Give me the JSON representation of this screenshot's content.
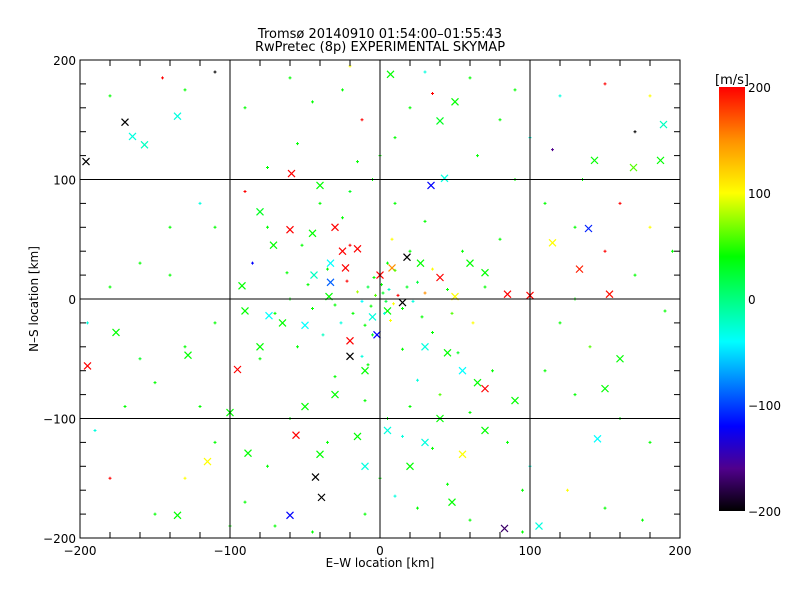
{
  "chart_data": {
    "type": "scatter",
    "title": "Tromsø 20140910 01:54:00–01:55:43",
    "subtitle": "RwPretec (8p) EXPERIMENTAL SKYMAP",
    "xlabel": "E–W location [km]",
    "ylabel": "N–S location [km]",
    "xlim": [
      -200,
      200
    ],
    "ylim": [
      -200,
      200
    ],
    "xticks": [
      "−200",
      "−100",
      "0",
      "100",
      "200"
    ],
    "yticks": [
      "−200",
      "−100",
      "0",
      "100",
      "200"
    ],
    "xtick_values": [
      -200,
      -100,
      0,
      100,
      200
    ],
    "ytick_values": [
      -200,
      -100,
      0,
      100,
      200
    ],
    "grid": true,
    "colorbar": {
      "label": "[m/s]",
      "range": [
        -200,
        200
      ],
      "tick_values": [
        200,
        100,
        0,
        -100,
        -200
      ],
      "tick_labels": [
        "200",
        "100",
        "0",
        "−100",
        "−200"
      ],
      "stops": [
        {
          "v": -200,
          "color": "#000000"
        },
        {
          "v": -160,
          "color": "#50008c"
        },
        {
          "v": -120,
          "color": "#0000ff"
        },
        {
          "v": -40,
          "color": "#00ffff"
        },
        {
          "v": 0,
          "color": "#00ff80"
        },
        {
          "v": 40,
          "color": "#00ff00"
        },
        {
          "v": 100,
          "color": "#ffff00"
        },
        {
          "v": 150,
          "color": "#ff9000"
        },
        {
          "v": 200,
          "color": "#ff0000"
        }
      ]
    },
    "point_fields": [
      "x_km",
      "y_km",
      "velocity_ms",
      "large_cross"
    ],
    "points": [
      [
        -170,
        148,
        -200,
        1
      ],
      [
        -196,
        115,
        -200,
        1
      ],
      [
        -135,
        153,
        -30,
        1
      ],
      [
        -165,
        136,
        -30,
        1
      ],
      [
        -157,
        129,
        -20,
        1
      ],
      [
        -59,
        105,
        200,
        1
      ],
      [
        -80,
        73,
        30,
        1
      ],
      [
        -71,
        45,
        40,
        1
      ],
      [
        -92,
        11,
        40,
        1
      ],
      [
        -40,
        95,
        40,
        1
      ],
      [
        7,
        188,
        40,
        1
      ],
      [
        40,
        149,
        30,
        1
      ],
      [
        50,
        165,
        40,
        1
      ],
      [
        34,
        95,
        -120,
        1
      ],
      [
        43,
        101,
        -30,
        1
      ],
      [
        143,
        116,
        40,
        1
      ],
      [
        133,
        25,
        190,
        1
      ],
      [
        153,
        4,
        195,
        1
      ],
      [
        187,
        116,
        40,
        1
      ],
      [
        169,
        110,
        60,
        1
      ],
      [
        139,
        59,
        -110,
        1
      ],
      [
        115,
        47,
        100,
        1
      ],
      [
        189,
        146,
        -20,
        1
      ],
      [
        -195,
        -56,
        200,
        1
      ],
      [
        -95,
        -59,
        200,
        1
      ],
      [
        -176,
        -28,
        40,
        1
      ],
      [
        -135,
        -181,
        40,
        1
      ],
      [
        -115,
        -136,
        100,
        1
      ],
      [
        -60,
        -181,
        -120,
        1
      ],
      [
        -43,
        -149,
        -200,
        1
      ],
      [
        -39,
        -166,
        -200,
        1
      ],
      [
        -56,
        -114,
        200,
        1
      ],
      [
        83,
        -192,
        -170,
        1
      ],
      [
        106,
        -190,
        -30,
        1
      ],
      [
        145,
        -117,
        -40,
        1
      ],
      [
        -20,
        -48,
        -200,
        1
      ],
      [
        -10,
        -60,
        40,
        1
      ],
      [
        -65,
        -20,
        40,
        1
      ],
      [
        -50,
        -22,
        -40,
        1
      ],
      [
        -74,
        -14,
        -40,
        1
      ],
      [
        -34,
        2,
        40,
        1
      ],
      [
        -25,
        40,
        200,
        1
      ],
      [
        -23,
        26,
        200,
        1
      ],
      [
        -15,
        42,
        200,
        1
      ],
      [
        -33,
        30,
        -40,
        1
      ],
      [
        -30,
        60,
        200,
        1
      ],
      [
        -45,
        55,
        40,
        1
      ],
      [
        -60,
        58,
        200,
        1
      ],
      [
        -44,
        20,
        -20,
        1
      ],
      [
        -33,
        14,
        -90,
        1
      ],
      [
        0,
        20,
        200,
        1
      ],
      [
        8,
        26,
        150,
        1
      ],
      [
        18,
        35,
        -200,
        1
      ],
      [
        27,
        30,
        40,
        1
      ],
      [
        40,
        18,
        200,
        1
      ],
      [
        60,
        30,
        40,
        1
      ],
      [
        70,
        22,
        40,
        1
      ],
      [
        85,
        4,
        200,
        1
      ],
      [
        100,
        3,
        200,
        1
      ],
      [
        50,
        2,
        100,
        1
      ],
      [
        15,
        -3,
        -200,
        1
      ],
      [
        5,
        -10,
        40,
        1
      ],
      [
        -5,
        -15,
        -30,
        1
      ],
      [
        -2,
        -30,
        -120,
        1
      ],
      [
        -20,
        -35,
        200,
        1
      ],
      [
        30,
        -40,
        -30,
        1
      ],
      [
        45,
        -45,
        40,
        1
      ],
      [
        55,
        -60,
        -40,
        1
      ],
      [
        65,
        -70,
        40,
        1
      ],
      [
        70,
        -75,
        200,
        1
      ],
      [
        90,
        -85,
        40,
        1
      ],
      [
        40,
        -100,
        40,
        1
      ],
      [
        30,
        -120,
        -30,
        1
      ],
      [
        55,
        -130,
        100,
        1
      ],
      [
        20,
        -140,
        40,
        1
      ],
      [
        -30,
        -80,
        40,
        1
      ],
      [
        -50,
        -90,
        40,
        1
      ],
      [
        -15,
        -115,
        40,
        1
      ],
      [
        -40,
        -130,
        40,
        1
      ],
      [
        -10,
        -140,
        -30,
        1
      ],
      [
        -88,
        -129,
        40,
        1
      ],
      [
        -100,
        -95,
        40,
        1
      ],
      [
        -128,
        -47,
        40,
        1
      ],
      [
        -90,
        -10,
        40,
        1
      ],
      [
        -80,
        -40,
        40,
        1
      ],
      [
        5,
        -110,
        -30,
        1
      ],
      [
        48,
        -170,
        40,
        1
      ],
      [
        70,
        -110,
        40,
        1
      ],
      [
        160,
        -50,
        40,
        1
      ],
      [
        150,
        -75,
        40,
        1
      ],
      [
        2,
        5,
        30,
        0
      ],
      [
        4,
        -2,
        20,
        0
      ],
      [
        -3,
        3,
        60,
        0
      ],
      [
        6,
        8,
        -20,
        0
      ],
      [
        9,
        -4,
        100,
        0
      ],
      [
        -6,
        -6,
        40,
        0
      ],
      [
        12,
        3,
        200,
        0
      ],
      [
        -8,
        10,
        20,
        0
      ],
      [
        1,
        12,
        40,
        0
      ],
      [
        3,
        -12,
        -30,
        0
      ],
      [
        -12,
        -2,
        -40,
        0
      ],
      [
        15,
        -8,
        40,
        0
      ],
      [
        -15,
        6,
        80,
        0
      ],
      [
        18,
        10,
        30,
        0
      ],
      [
        -4,
        18,
        40,
        0
      ],
      [
        7,
        -18,
        100,
        0
      ],
      [
        22,
        -2,
        -30,
        0
      ],
      [
        -18,
        -12,
        40,
        0
      ],
      [
        25,
        14,
        20,
        0
      ],
      [
        -22,
        15,
        200,
        0
      ],
      [
        10,
        24,
        60,
        0
      ],
      [
        -10,
        -22,
        40,
        0
      ],
      [
        28,
        -15,
        40,
        0
      ],
      [
        -26,
        -20,
        -30,
        0
      ],
      [
        30,
        5,
        150,
        0
      ],
      [
        -30,
        -5,
        40,
        0
      ],
      [
        5,
        30,
        40,
        0
      ],
      [
        -5,
        -30,
        30,
        0
      ],
      [
        35,
        25,
        100,
        0
      ],
      [
        -35,
        25,
        40,
        0
      ],
      [
        35,
        -28,
        40,
        0
      ],
      [
        -38,
        -30,
        -20,
        0
      ],
      [
        20,
        40,
        40,
        0
      ],
      [
        -20,
        45,
        200,
        0
      ],
      [
        15,
        -42,
        40,
        0
      ],
      [
        -12,
        -48,
        -30,
        0
      ],
      [
        45,
        8,
        40,
        0
      ],
      [
        -45,
        -8,
        40,
        0
      ],
      [
        48,
        -12,
        60,
        0
      ],
      [
        -48,
        12,
        40,
        0
      ],
      [
        8,
        50,
        100,
        0
      ],
      [
        -8,
        -55,
        40,
        0
      ],
      [
        55,
        40,
        40,
        0
      ],
      [
        -55,
        -40,
        40,
        0
      ],
      [
        52,
        -45,
        30,
        0
      ],
      [
        -52,
        45,
        40,
        0
      ],
      [
        30,
        65,
        40,
        0
      ],
      [
        -30,
        -65,
        40,
        0
      ],
      [
        25,
        -68,
        -30,
        0
      ],
      [
        -25,
        68,
        40,
        0
      ],
      [
        70,
        10,
        40,
        0
      ],
      [
        -70,
        -12,
        40,
        0
      ],
      [
        62,
        -20,
        100,
        0
      ],
      [
        -62,
        22,
        40,
        0
      ],
      [
        80,
        50,
        40,
        0
      ],
      [
        -80,
        -50,
        40,
        0
      ],
      [
        75,
        -60,
        40,
        0
      ],
      [
        -75,
        60,
        40,
        0
      ],
      [
        10,
        80,
        40,
        0
      ],
      [
        -10,
        -85,
        40,
        0
      ],
      [
        20,
        -90,
        40,
        0
      ],
      [
        -20,
        90,
        30,
        0
      ],
      [
        40,
        -80,
        60,
        0
      ],
      [
        -40,
        80,
        40,
        0
      ],
      [
        60,
        -95,
        40,
        0
      ],
      [
        -60,
        -100,
        40,
        0
      ],
      [
        5,
        -100,
        40,
        0
      ],
      [
        -5,
        100,
        40,
        0
      ],
      [
        15,
        -115,
        -30,
        0
      ],
      [
        -15,
        115,
        40,
        0
      ],
      [
        35,
        -125,
        40,
        0
      ],
      [
        -35,
        -120,
        40,
        0
      ],
      [
        0,
        -150,
        40,
        0
      ],
      [
        10,
        -165,
        -30,
        0
      ],
      [
        25,
        -175,
        40,
        0
      ],
      [
        -10,
        -180,
        40,
        0
      ],
      [
        45,
        -155,
        40,
        0
      ],
      [
        60,
        -185,
        40,
        0
      ],
      [
        0,
        120,
        40,
        0
      ],
      [
        10,
        135,
        40,
        0
      ],
      [
        -12,
        150,
        200,
        0
      ],
      [
        20,
        160,
        40,
        0
      ],
      [
        -25,
        175,
        40,
        0
      ],
      [
        30,
        190,
        -30,
        0
      ],
      [
        90,
        100,
        40,
        0
      ],
      [
        110,
        80,
        40,
        0
      ],
      [
        130,
        60,
        40,
        0
      ],
      [
        150,
        40,
        200,
        0
      ],
      [
        170,
        20,
        40,
        0
      ],
      [
        190,
        -10,
        40,
        0
      ],
      [
        120,
        -20,
        40,
        0
      ],
      [
        140,
        -40,
        60,
        0
      ],
      [
        110,
        -60,
        40,
        0
      ],
      [
        130,
        -80,
        40,
        0
      ],
      [
        160,
        -100,
        40,
        0
      ],
      [
        180,
        -120,
        40,
        0
      ],
      [
        100,
        -140,
        -30,
        0
      ],
      [
        125,
        -160,
        100,
        0
      ],
      [
        150,
        -175,
        40,
        0
      ],
      [
        175,
        -185,
        40,
        0
      ],
      [
        95,
        -160,
        40,
        0
      ],
      [
        85,
        -120,
        40,
        0
      ],
      [
        -100,
        100,
        40,
        0
      ],
      [
        -120,
        80,
        -30,
        0
      ],
      [
        -140,
        60,
        40,
        0
      ],
      [
        -160,
        30,
        40,
        0
      ],
      [
        -180,
        10,
        40,
        0
      ],
      [
        -195,
        -20,
        -30,
        0
      ],
      [
        -110,
        -20,
        40,
        0
      ],
      [
        -130,
        -40,
        40,
        0
      ],
      [
        -150,
        -70,
        40,
        0
      ],
      [
        -170,
        -90,
        40,
        0
      ],
      [
        -190,
        -110,
        -30,
        0
      ],
      [
        -180,
        -150,
        200,
        0
      ],
      [
        -110,
        -120,
        40,
        0
      ],
      [
        -130,
        -150,
        100,
        0
      ],
      [
        -150,
        -180,
        40,
        0
      ],
      [
        -90,
        -170,
        40,
        0
      ],
      [
        -70,
        -190,
        40,
        0
      ],
      [
        -100,
        -190,
        40,
        0
      ],
      [
        -110,
        190,
        -200,
        0
      ],
      [
        -145,
        185,
        200,
        0
      ],
      [
        -180,
        170,
        40,
        0
      ],
      [
        -130,
        175,
        40,
        0
      ],
      [
        -90,
        160,
        40,
        0
      ],
      [
        -60,
        185,
        40,
        0
      ],
      [
        60,
        185,
        40,
        0
      ],
      [
        90,
        175,
        40,
        0
      ],
      [
        120,
        170,
        -30,
        0
      ],
      [
        150,
        180,
        200,
        0
      ],
      [
        180,
        170,
        100,
        0
      ],
      [
        170,
        140,
        -200,
        0
      ],
      [
        115,
        125,
        -160,
        0
      ],
      [
        135,
        100,
        40,
        0
      ],
      [
        160,
        80,
        200,
        0
      ],
      [
        180,
        60,
        100,
        0
      ],
      [
        195,
        40,
        40,
        0
      ],
      [
        130,
        0,
        40,
        0
      ],
      [
        -55,
        130,
        40,
        0
      ],
      [
        -75,
        110,
        40,
        0
      ],
      [
        -90,
        90,
        200,
        0
      ],
      [
        -110,
        60,
        40,
        0
      ],
      [
        -85,
        30,
        -120,
        0
      ],
      [
        -60,
        0,
        40,
        0
      ],
      [
        -45,
        165,
        40,
        0
      ],
      [
        -20,
        195,
        100,
        0
      ],
      [
        35,
        172,
        200,
        0
      ],
      [
        65,
        120,
        40,
        0
      ],
      [
        80,
        150,
        40,
        0
      ],
      [
        100,
        135,
        -30,
        0
      ],
      [
        -140,
        20,
        40,
        0
      ],
      [
        -160,
        -50,
        30,
        0
      ],
      [
        -120,
        -90,
        40,
        0
      ],
      [
        -75,
        -140,
        40,
        0
      ],
      [
        -45,
        -195,
        40,
        0
      ],
      [
        95,
        -195,
        40,
        0
      ]
    ]
  }
}
